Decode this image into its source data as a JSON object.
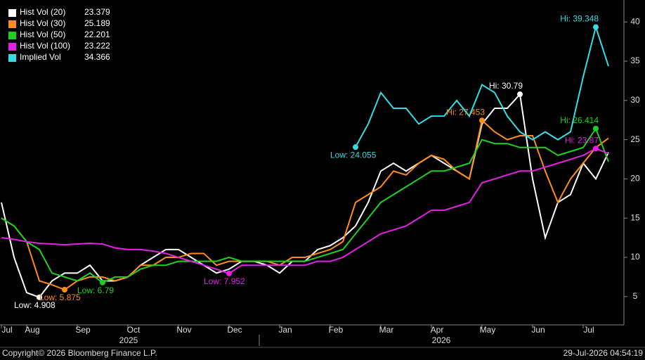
{
  "chart_data": {
    "type": "line",
    "categories": [
      "Jul",
      null,
      "Aug",
      null,
      null,
      null,
      "Sep",
      null,
      null,
      null,
      "Oct",
      null,
      null,
      null,
      "Nov",
      null,
      null,
      null,
      "Dec",
      null,
      null,
      null,
      "Jan",
      null,
      null,
      null,
      "Feb",
      null,
      null,
      null,
      "Mar",
      null,
      null,
      null,
      "Apr",
      null,
      null,
      null,
      "May",
      null,
      null,
      null,
      "Jun",
      null,
      null,
      null,
      "Jul",
      null,
      null
    ],
    "years": [
      "2025",
      "2026"
    ],
    "ylim": [
      1.4,
      42.8
    ],
    "yticks": [
      5,
      10,
      15,
      20,
      25,
      30,
      35,
      40
    ],
    "series": [
      {
        "name": "Hist Vol (20)",
        "color": "#ffffff",
        "low_label": "Low: 4.908",
        "high_label": "Hi: 30.79",
        "values": [
          17,
          10,
          5.5,
          4.908,
          7,
          8,
          8,
          9,
          7,
          7,
          7.5,
          9,
          10,
          11,
          11,
          10,
          9,
          8,
          8.5,
          9.5,
          9.5,
          9,
          8,
          9.5,
          9.5,
          11,
          11.5,
          12.5,
          14,
          17,
          21,
          22,
          21,
          22,
          23,
          22,
          21,
          20,
          27,
          29,
          29,
          30.79,
          20,
          12.5,
          17,
          18,
          22,
          20,
          23.379
        ]
      },
      {
        "name": "Hist Vol (30)",
        "color": "#ff8c1a",
        "low_label": "Low: 5.875",
        "high_label": "Hi: 27.453",
        "values": [
          15,
          14,
          12,
          7,
          6.5,
          5.875,
          7,
          7.5,
          7.5,
          7,
          7.5,
          9,
          9,
          10,
          10,
          10.5,
          10.5,
          9,
          9.5,
          9.5,
          9.5,
          9.5,
          9,
          10,
          10,
          10.5,
          11,
          12,
          17,
          18,
          19,
          21,
          20.5,
          22,
          23,
          22.5,
          21,
          20,
          27.453,
          26,
          25,
          25.5,
          25.5,
          21,
          17,
          20,
          22,
          24,
          25.189
        ]
      },
      {
        "name": "Hist Vol (50)",
        "color": "#1fd11f",
        "low_label": "Low: 6.79",
        "high_label": "Hi: 26.414",
        "values": [
          15,
          14,
          12,
          11,
          8,
          7.5,
          7,
          8,
          6.79,
          7.5,
          7.5,
          8.5,
          9,
          9,
          9.5,
          9.5,
          9.5,
          9.5,
          10,
          9.5,
          9.5,
          9.5,
          9.5,
          9.5,
          9.5,
          10,
          10.5,
          11,
          13,
          15,
          17,
          18,
          19,
          20,
          21,
          21,
          21.5,
          22,
          25,
          24.5,
          24.5,
          24,
          24,
          24,
          23,
          23.5,
          24,
          26.414,
          22.201
        ]
      },
      {
        "name": "Hist Vol (100)",
        "color": "#e61ee6",
        "low_label": "Low: 7.952",
        "high_label": "Hi: 23.87",
        "values": [
          12.5,
          12.3,
          12,
          11.8,
          11.7,
          11.6,
          11.7,
          11.8,
          11.7,
          11.2,
          11,
          11,
          10.8,
          10.5,
          10,
          9.5,
          9,
          8.5,
          7.952,
          9,
          9,
          9,
          9,
          9,
          9,
          9.5,
          9.5,
          10,
          11,
          12,
          13,
          13.5,
          14,
          15,
          16,
          16,
          16.5,
          17,
          19.5,
          20,
          20.5,
          21,
          21,
          21.5,
          22,
          22.5,
          23,
          23.87,
          23.222
        ]
      },
      {
        "name": "Implied Vol",
        "color": "#33dde6",
        "low_label": "Low: 24.055",
        "high_label": "Hi: 39.348",
        "values": [
          null,
          null,
          null,
          null,
          null,
          null,
          null,
          null,
          null,
          null,
          null,
          null,
          null,
          null,
          null,
          null,
          null,
          null,
          null,
          null,
          null,
          null,
          null,
          null,
          null,
          null,
          null,
          null,
          24.055,
          27,
          31,
          29,
          29,
          27,
          28,
          28,
          30,
          28,
          32,
          31,
          28,
          26,
          25,
          26,
          25,
          26,
          33,
          39.348,
          34.366
        ]
      }
    ]
  },
  "footer": {
    "copyright": "Copyright© 2026 Bloomberg Finance L.P.",
    "timestamp": "29-Jul-2026 04:54:19"
  }
}
